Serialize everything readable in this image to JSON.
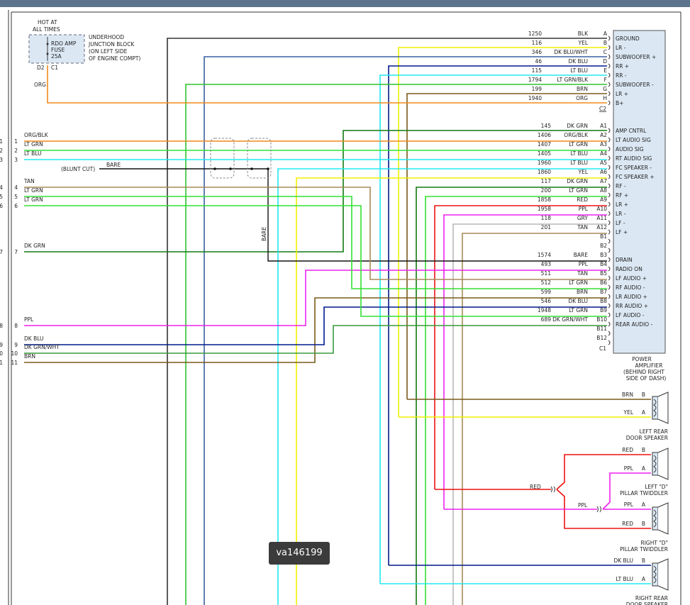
{
  "fuse": {
    "hot_label": [
      "HOT AT",
      "ALL TIMES"
    ],
    "fuse_label": [
      "RDO AMP",
      "FUSE",
      "25A"
    ],
    "block_label": [
      "UNDERHOOD",
      "JUNCTION BLOCK",
      "(ON LEFT SIDE",
      "OF ENGINE COMPT)"
    ],
    "pin_left": "D2",
    "pin_right": "C1",
    "wire_color": "ORG"
  },
  "amp": {
    "label": [
      "POWER",
      "AMPLIFIER",
      "(BEHIND RIGHT",
      "SIDE OF DASH)"
    ],
    "c2_label": "C2",
    "c1_label": "C1"
  },
  "connector_c2": [
    {
      "circuit": "1250",
      "color": "BLK",
      "pin": "A",
      "func": "GROUND",
      "hex": "#333333"
    },
    {
      "circuit": "116",
      "color": "YEL",
      "pin": "B",
      "func": "LR -",
      "hex": "#f0f000"
    },
    {
      "circuit": "346",
      "color": "DK BLU/WHT",
      "pin": "C",
      "func": "SUBWOOFER +",
      "hex": "#3a5fa0"
    },
    {
      "circuit": "46",
      "color": "DK BLU",
      "pin": "D",
      "func": "RR +",
      "hex": "#001a8c"
    },
    {
      "circuit": "115",
      "color": "LT BLU",
      "pin": "E",
      "func": "RR -",
      "hex": "#22e8f0"
    },
    {
      "circuit": "1794",
      "color": "LT GRN/BLK",
      "pin": "F",
      "func": "SUBWOOFER -",
      "hex": "#2fc22f"
    },
    {
      "circuit": "199",
      "color": "BRN",
      "pin": "G",
      "func": "LR +",
      "hex": "#7a5a1a"
    },
    {
      "circuit": "1940",
      "color": "ORG",
      "pin": "H",
      "func": "B+",
      "hex": "#f08a1c"
    }
  ],
  "connector_c1": [
    {
      "circuit": "145",
      "color": "DK GRN",
      "pin": "A1",
      "func": "AMP CNTRL",
      "hex": "#117a11"
    },
    {
      "circuit": "1406",
      "color": "ORG/BLK",
      "pin": "A2",
      "func": "LT AUDIO SIG",
      "hex": "#f08a1c"
    },
    {
      "circuit": "1407",
      "color": "LT GRN",
      "pin": "A3",
      "func": "AUDIO SIG",
      "hex": "#33e033"
    },
    {
      "circuit": "1405",
      "color": "LT BLU",
      "pin": "A4",
      "func": "RT AUDIO SIG",
      "hex": "#22e8f0"
    },
    {
      "circuit": "1960",
      "color": "LT BLU",
      "pin": "A5",
      "func": "FC SPEAKER -",
      "hex": "#22e8f0"
    },
    {
      "circuit": "1860",
      "color": "YEL",
      "pin": "A6",
      "func": "FC SPEAKER +",
      "hex": "#f0f000"
    },
    {
      "circuit": "117",
      "color": "DK GRN",
      "pin": "A7",
      "func": "RF -",
      "hex": "#117a11"
    },
    {
      "circuit": "200",
      "color": "LT GRN",
      "pin": "A8",
      "func": "RF +",
      "hex": "#33e033"
    },
    {
      "circuit": "1858",
      "color": "RED",
      "pin": "A9",
      "func": "LR +",
      "hex": "#ee1111"
    },
    {
      "circuit": "1958",
      "color": "PPL",
      "pin": "A10",
      "func": "LR -",
      "hex": "#ee22ee"
    },
    {
      "circuit": "118",
      "color": "GRY",
      "pin": "A11",
      "func": "LF -",
      "hex": "#b8b8b8"
    },
    {
      "circuit": "201",
      "color": "TAN",
      "pin": "A12",
      "func": "LF +",
      "hex": "#a88a5a"
    },
    {
      "circuit": "",
      "color": "",
      "pin": "B1",
      "func": "",
      "hex": ""
    },
    {
      "circuit": "",
      "color": "",
      "pin": "B2",
      "func": "",
      "hex": ""
    },
    {
      "circuit": "1574",
      "color": "BARE",
      "pin": "B3",
      "func": "DRAIN",
      "hex": "#111111"
    },
    {
      "circuit": "493",
      "color": "PPL",
      "pin": "B4",
      "func": "RADIO ON",
      "hex": "#ee22ee"
    },
    {
      "circuit": "511",
      "color": "TAN",
      "pin": "B5",
      "func": "LF AUDIO +",
      "hex": "#a88a5a"
    },
    {
      "circuit": "512",
      "color": "LT GRN",
      "pin": "B6",
      "func": "RF AUDIO -",
      "hex": "#33e033"
    },
    {
      "circuit": "599",
      "color": "BRN",
      "pin": "B7",
      "func": "LR AUDIO +",
      "hex": "#7a5a1a"
    },
    {
      "circuit": "546",
      "color": "DK BLU",
      "pin": "B8",
      "func": "RR AUDIO +",
      "hex": "#001a8c"
    },
    {
      "circuit": "1948",
      "color": "LT GRN",
      "pin": "B9",
      "func": "LF AUDIO -",
      "hex": "#33e033"
    },
    {
      "circuit": "689",
      "color": "DK GRN/WHT",
      "pin": "B10",
      "func": "REAR AUDIO -",
      "hex": "#3a9a3a"
    },
    {
      "circuit": "",
      "color": "",
      "pin": "B11",
      "func": "",
      "hex": ""
    },
    {
      "circuit": "",
      "color": "",
      "pin": "B12",
      "func": "",
      "hex": ""
    }
  ],
  "left_pins": [
    {
      "num": "1",
      "color": "ORG/BLK"
    },
    {
      "num": "2",
      "color": "LT GRN"
    },
    {
      "num": "3",
      "color": "LT BLU"
    },
    {
      "num": "4",
      "color": "TAN"
    },
    {
      "num": "5",
      "color": "LT GRN"
    },
    {
      "num": "6",
      "color": "LT GRN"
    },
    {
      "num": "7",
      "color": "DK GRN"
    },
    {
      "num": "8",
      "color": "PPL"
    },
    {
      "num": "9",
      "color": "DK BLU"
    },
    {
      "num": "10",
      "color": "DK GRN/WHT"
    },
    {
      "num": "11",
      "color": "BRN"
    }
  ],
  "labels": {
    "bare": "BARE",
    "bare_vertical": "BARE",
    "blunt_cut": "(BLUNT CUT)",
    "red_mid": "RED",
    "ppl_mid": "PPL"
  },
  "speakers": [
    {
      "name": [
        "LEFT REAR",
        "DOOR SPEAKER"
      ],
      "b": "BRN",
      "a": "YEL"
    },
    {
      "name": [
        "LEFT \"D\"",
        "PILLAR TWIDDLER"
      ],
      "b": "RED",
      "a": "PPL"
    },
    {
      "name": [
        "RIGHT \"D\"",
        "PILLAR TWIDDLER"
      ],
      "a": "PPL",
      "b": "RED"
    },
    {
      "name": [
        "RIGHT REAR",
        "DOOR SPEAKER"
      ],
      "b": "DK BLU",
      "a": "LT BLU"
    }
  ],
  "watermark": "va146199"
}
